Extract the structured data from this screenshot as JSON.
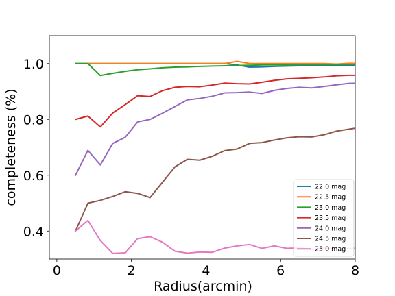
{
  "chart_data": {
    "type": "line",
    "xlabel": "Radius(arcmin)",
    "ylabel": "completeness (%)",
    "xlim": [
      -0.2,
      8
    ],
    "ylim": [
      0.3,
      1.1
    ],
    "xticks": [
      0,
      2,
      4,
      6,
      8
    ],
    "xtick_labels": [
      "0",
      "2",
      "4",
      "6",
      "8"
    ],
    "yticks": [
      0.4,
      0.6,
      0.8,
      1.0
    ],
    "ytick_labels": [
      "0.4",
      "0.6",
      "0.8",
      "1.0"
    ],
    "grid": false,
    "legend_position": "bottom-right",
    "x": [
      0.5,
      0.833,
      1.167,
      1.5,
      1.833,
      2.167,
      2.5,
      2.833,
      3.167,
      3.5,
      3.833,
      4.167,
      4.5,
      4.833,
      5.167,
      5.5,
      5.833,
      6.167,
      6.5,
      6.833,
      7.167,
      7.5,
      7.833,
      8.167
    ],
    "series": [
      {
        "name": "22.0 mag",
        "color": "#1f77b4",
        "values": [
          1.0,
          1.0,
          1.0,
          1.0,
          1.0,
          1.0,
          1.0,
          1.0,
          1.0,
          1.0,
          1.0,
          1.0,
          1.0,
          0.995,
          0.987,
          0.988,
          0.99,
          0.991,
          0.992,
          0.992,
          0.993,
          0.993,
          0.994,
          0.994
        ]
      },
      {
        "name": "22.5 mag",
        "color": "#ff7f0e",
        "values": [
          1.0,
          1.0,
          1.0,
          1.0,
          1.0,
          1.0,
          1.0,
          1.0,
          1.0,
          1.0,
          1.0,
          1.0,
          1.0,
          1.008,
          1.0,
          1.0,
          1.0,
          1.0,
          1.0,
          1.0,
          1.0,
          0.998,
          1.001,
          1.0
        ]
      },
      {
        "name": "23.0 mag",
        "color": "#2ca02c",
        "values": [
          1.0,
          1.0,
          0.957,
          0.965,
          0.972,
          0.978,
          0.981,
          0.985,
          0.987,
          0.988,
          0.99,
          0.991,
          0.992,
          0.993,
          0.994,
          0.995,
          0.995,
          0.995,
          0.996,
          0.996,
          0.996,
          0.996,
          0.997,
          0.997
        ]
      },
      {
        "name": "23.5 mag",
        "color": "#d62728",
        "values": [
          0.8,
          0.812,
          0.773,
          0.823,
          0.853,
          0.885,
          0.882,
          0.903,
          0.915,
          0.918,
          0.917,
          0.923,
          0.93,
          0.928,
          0.927,
          0.933,
          0.94,
          0.945,
          0.947,
          0.949,
          0.952,
          0.956,
          0.958,
          0.958
        ]
      },
      {
        "name": "24.0 mag",
        "color": "#9467bd",
        "values": [
          0.6,
          0.689,
          0.637,
          0.714,
          0.736,
          0.791,
          0.8,
          0.822,
          0.846,
          0.87,
          0.875,
          0.883,
          0.895,
          0.896,
          0.898,
          0.893,
          0.904,
          0.911,
          0.915,
          0.913,
          0.918,
          0.924,
          0.929,
          0.93
        ]
      },
      {
        "name": "24.5 mag",
        "color": "#8c564b",
        "values": [
          0.4,
          0.5,
          0.51,
          0.524,
          0.541,
          0.535,
          0.52,
          0.575,
          0.63,
          0.657,
          0.654,
          0.668,
          0.688,
          0.694,
          0.714,
          0.717,
          0.726,
          0.734,
          0.738,
          0.737,
          0.745,
          0.758,
          0.765,
          0.772
        ]
      },
      {
        "name": "25.0 mag",
        "color": "#e377c2",
        "values": [
          0.4,
          0.438,
          0.366,
          0.32,
          0.322,
          0.373,
          0.38,
          0.36,
          0.328,
          0.321,
          0.325,
          0.324,
          0.339,
          0.347,
          0.352,
          0.338,
          0.347,
          0.338,
          0.34,
          0.334,
          0.34,
          0.336,
          0.337,
          0.34
        ]
      }
    ]
  }
}
